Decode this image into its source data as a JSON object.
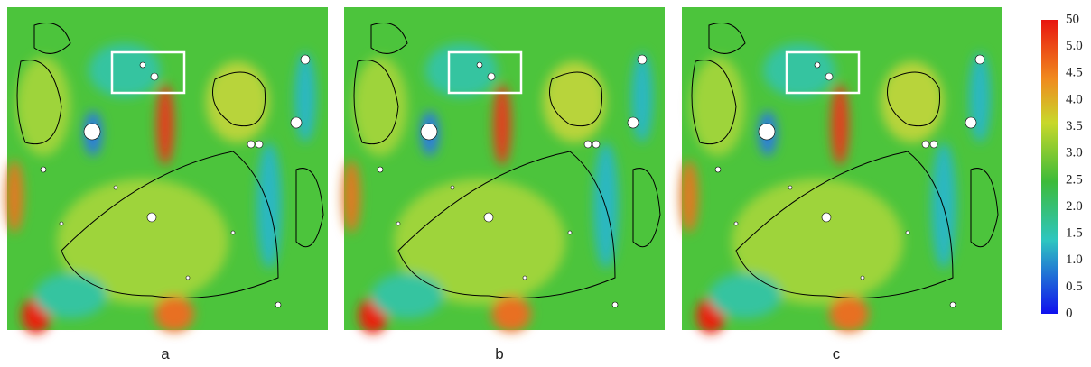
{
  "panels": [
    {
      "label": "a"
    },
    {
      "label": "b"
    },
    {
      "label": "c"
    }
  ],
  "colorbar": {
    "labels": [
      "50",
      "5.0",
      "4.5",
      "4.0",
      "3.5",
      "3.0",
      "2.5",
      "2.0",
      "1.5",
      "1.0",
      "0.5",
      "0"
    ]
  }
}
